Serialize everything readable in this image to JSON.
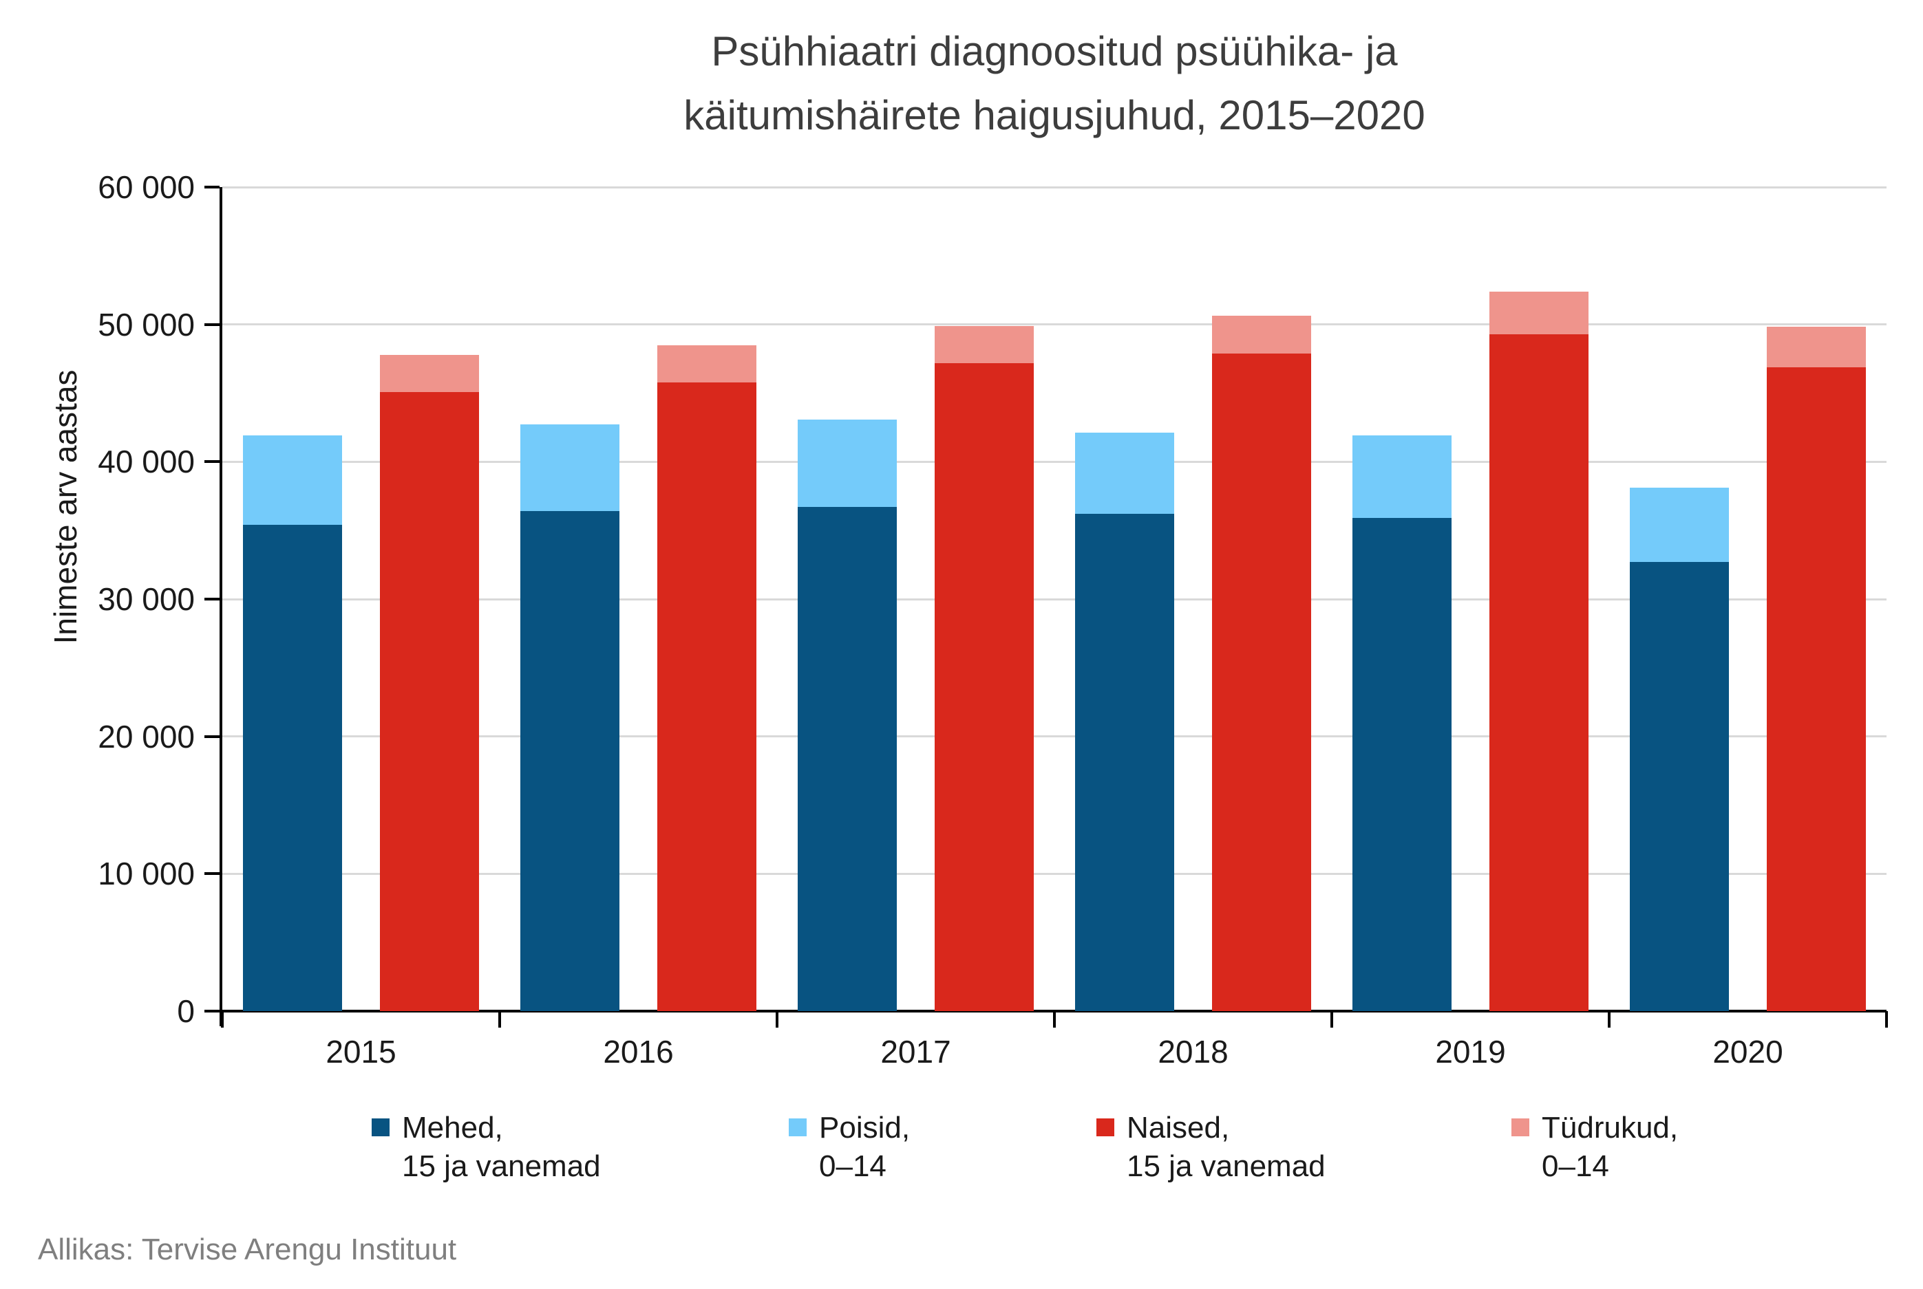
{
  "title": {
    "line1": "Psühhiaatri diagnoositud psüühika- ja",
    "line2": "käitumishäirete haigusjuhud, 2015–2020"
  },
  "y_axis": {
    "title": "Inimeste arv aastas",
    "ticks": [
      {
        "value": 0,
        "label": "0"
      },
      {
        "value": 10000,
        "label": "10 000"
      },
      {
        "value": 20000,
        "label": "20 000"
      },
      {
        "value": 30000,
        "label": "30 000"
      },
      {
        "value": 40000,
        "label": "40 000"
      },
      {
        "value": 50000,
        "label": "50 000"
      },
      {
        "value": 60000,
        "label": "60 000"
      }
    ]
  },
  "x_axis": {
    "categories": [
      "2015",
      "2016",
      "2017",
      "2018",
      "2019",
      "2020"
    ]
  },
  "legend": [
    {
      "line1": "Mehed,",
      "line2": "15 ja vanemad",
      "color": "#085381"
    },
    {
      "line1": "Poisid,",
      "line2": "0–14",
      "color": "#74cbfa"
    },
    {
      "line1": "Naised,",
      "line2": "15 ja vanemad",
      "color": "#d9281c"
    },
    {
      "line1": "Tüdrukud,",
      "line2": "0–14",
      "color": "#ef948c"
    }
  ],
  "source": "Allikas: Tervise Arengu Instituut",
  "colors": {
    "background": "#ffffff",
    "grid": "#d9d9d9",
    "axis": "#000000",
    "title_text": "#3d3d3d",
    "tick_text": "#1a1a1a",
    "source_text": "#7f7f7f",
    "male_adult": "#085381",
    "boys": "#74cbfa",
    "female_adult": "#d9281c",
    "girls": "#ef948c"
  },
  "chart_data": {
    "type": "bar",
    "layout": "grouped-stacked",
    "title": "Psühhiaatri diagnoositud psüühika- ja käitumishäirete haigusjuhud, 2015–2020",
    "xlabel": "",
    "ylabel": "Inimeste arv aastas",
    "ylim": [
      0,
      60000
    ],
    "ytick_step": 10000,
    "grid": "horizontal",
    "legend_position": "bottom",
    "categories": [
      "2015",
      "2016",
      "2017",
      "2018",
      "2019",
      "2020"
    ],
    "stacks": [
      "male",
      "female"
    ],
    "series": [
      {
        "name": "Mehed, 15 ja vanemad",
        "stack": "male",
        "color": "#085381",
        "values": [
          35400,
          36400,
          36700,
          36200,
          35900,
          32700
        ]
      },
      {
        "name": "Poisid, 0–14",
        "stack": "male",
        "color": "#74cbfa",
        "values": [
          6500,
          6300,
          6350,
          5900,
          6000,
          5400
        ]
      },
      {
        "name": "Naised, 15 ja vanemad",
        "stack": "female",
        "color": "#d9281c",
        "values": [
          45100,
          45800,
          47200,
          47900,
          49300,
          46900
        ]
      },
      {
        "name": "Tüdrukud, 0–14",
        "stack": "female",
        "color": "#ef948c",
        "values": [
          2700,
          2700,
          2700,
          2750,
          3100,
          2950
        ]
      }
    ],
    "stack_totals": {
      "male": [
        41900,
        42700,
        43050,
        42100,
        41900,
        38100
      ],
      "female": [
        47800,
        48500,
        49900,
        50650,
        52400,
        49850
      ]
    }
  }
}
